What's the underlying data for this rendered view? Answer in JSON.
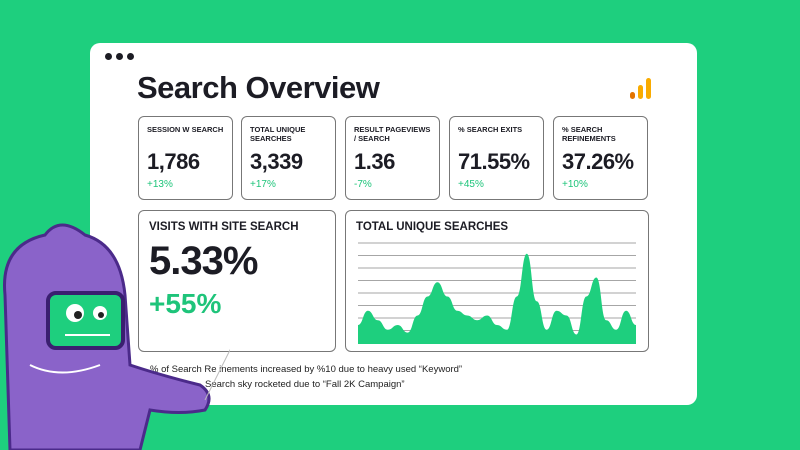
{
  "title": "Search Overview",
  "kpis": [
    {
      "label": "SESSION W SEARCH",
      "value": "1,786",
      "change": "+13%"
    },
    {
      "label": "TOTAL UNIQUE SEARCHES",
      "value": "3,339",
      "change": "+17%"
    },
    {
      "label": "RESULT PAGEVIEWS / SEARCH",
      "value": "1.36",
      "change": "-7%"
    },
    {
      "label": "% SEARCH EXITS",
      "value": "71.55%",
      "change": "+45%"
    },
    {
      "label": "% SEARCH REFINEMENTS",
      "value": "37.26%",
      "change": "+10%"
    }
  ],
  "visits": {
    "label": "VISITS WITH SITE SEARCH",
    "value": "5.33%",
    "change": "+55%"
  },
  "searches_chart": {
    "label": "TOTAL UNIQUE SEARCHES",
    "values": [
      0.2,
      0.35,
      0.25,
      0.15,
      0.2,
      0.12,
      0.3,
      0.5,
      0.65,
      0.5,
      0.35,
      0.3,
      0.25,
      0.3,
      0.2,
      0.15,
      0.5,
      0.95,
      0.45,
      0.15,
      0.35,
      0.3,
      0.1,
      0.5,
      0.7,
      0.25,
      0.15,
      0.35,
      0.2
    ]
  },
  "notes": [
    "% of Search Re  inements increased by %10 due to heavy used “Keyword”",
    "Search sky rocketed due to “Fall 2K Campaign”"
  ],
  "colors": {
    "accent": "#1ecf7e",
    "logo": "#f5a623"
  }
}
